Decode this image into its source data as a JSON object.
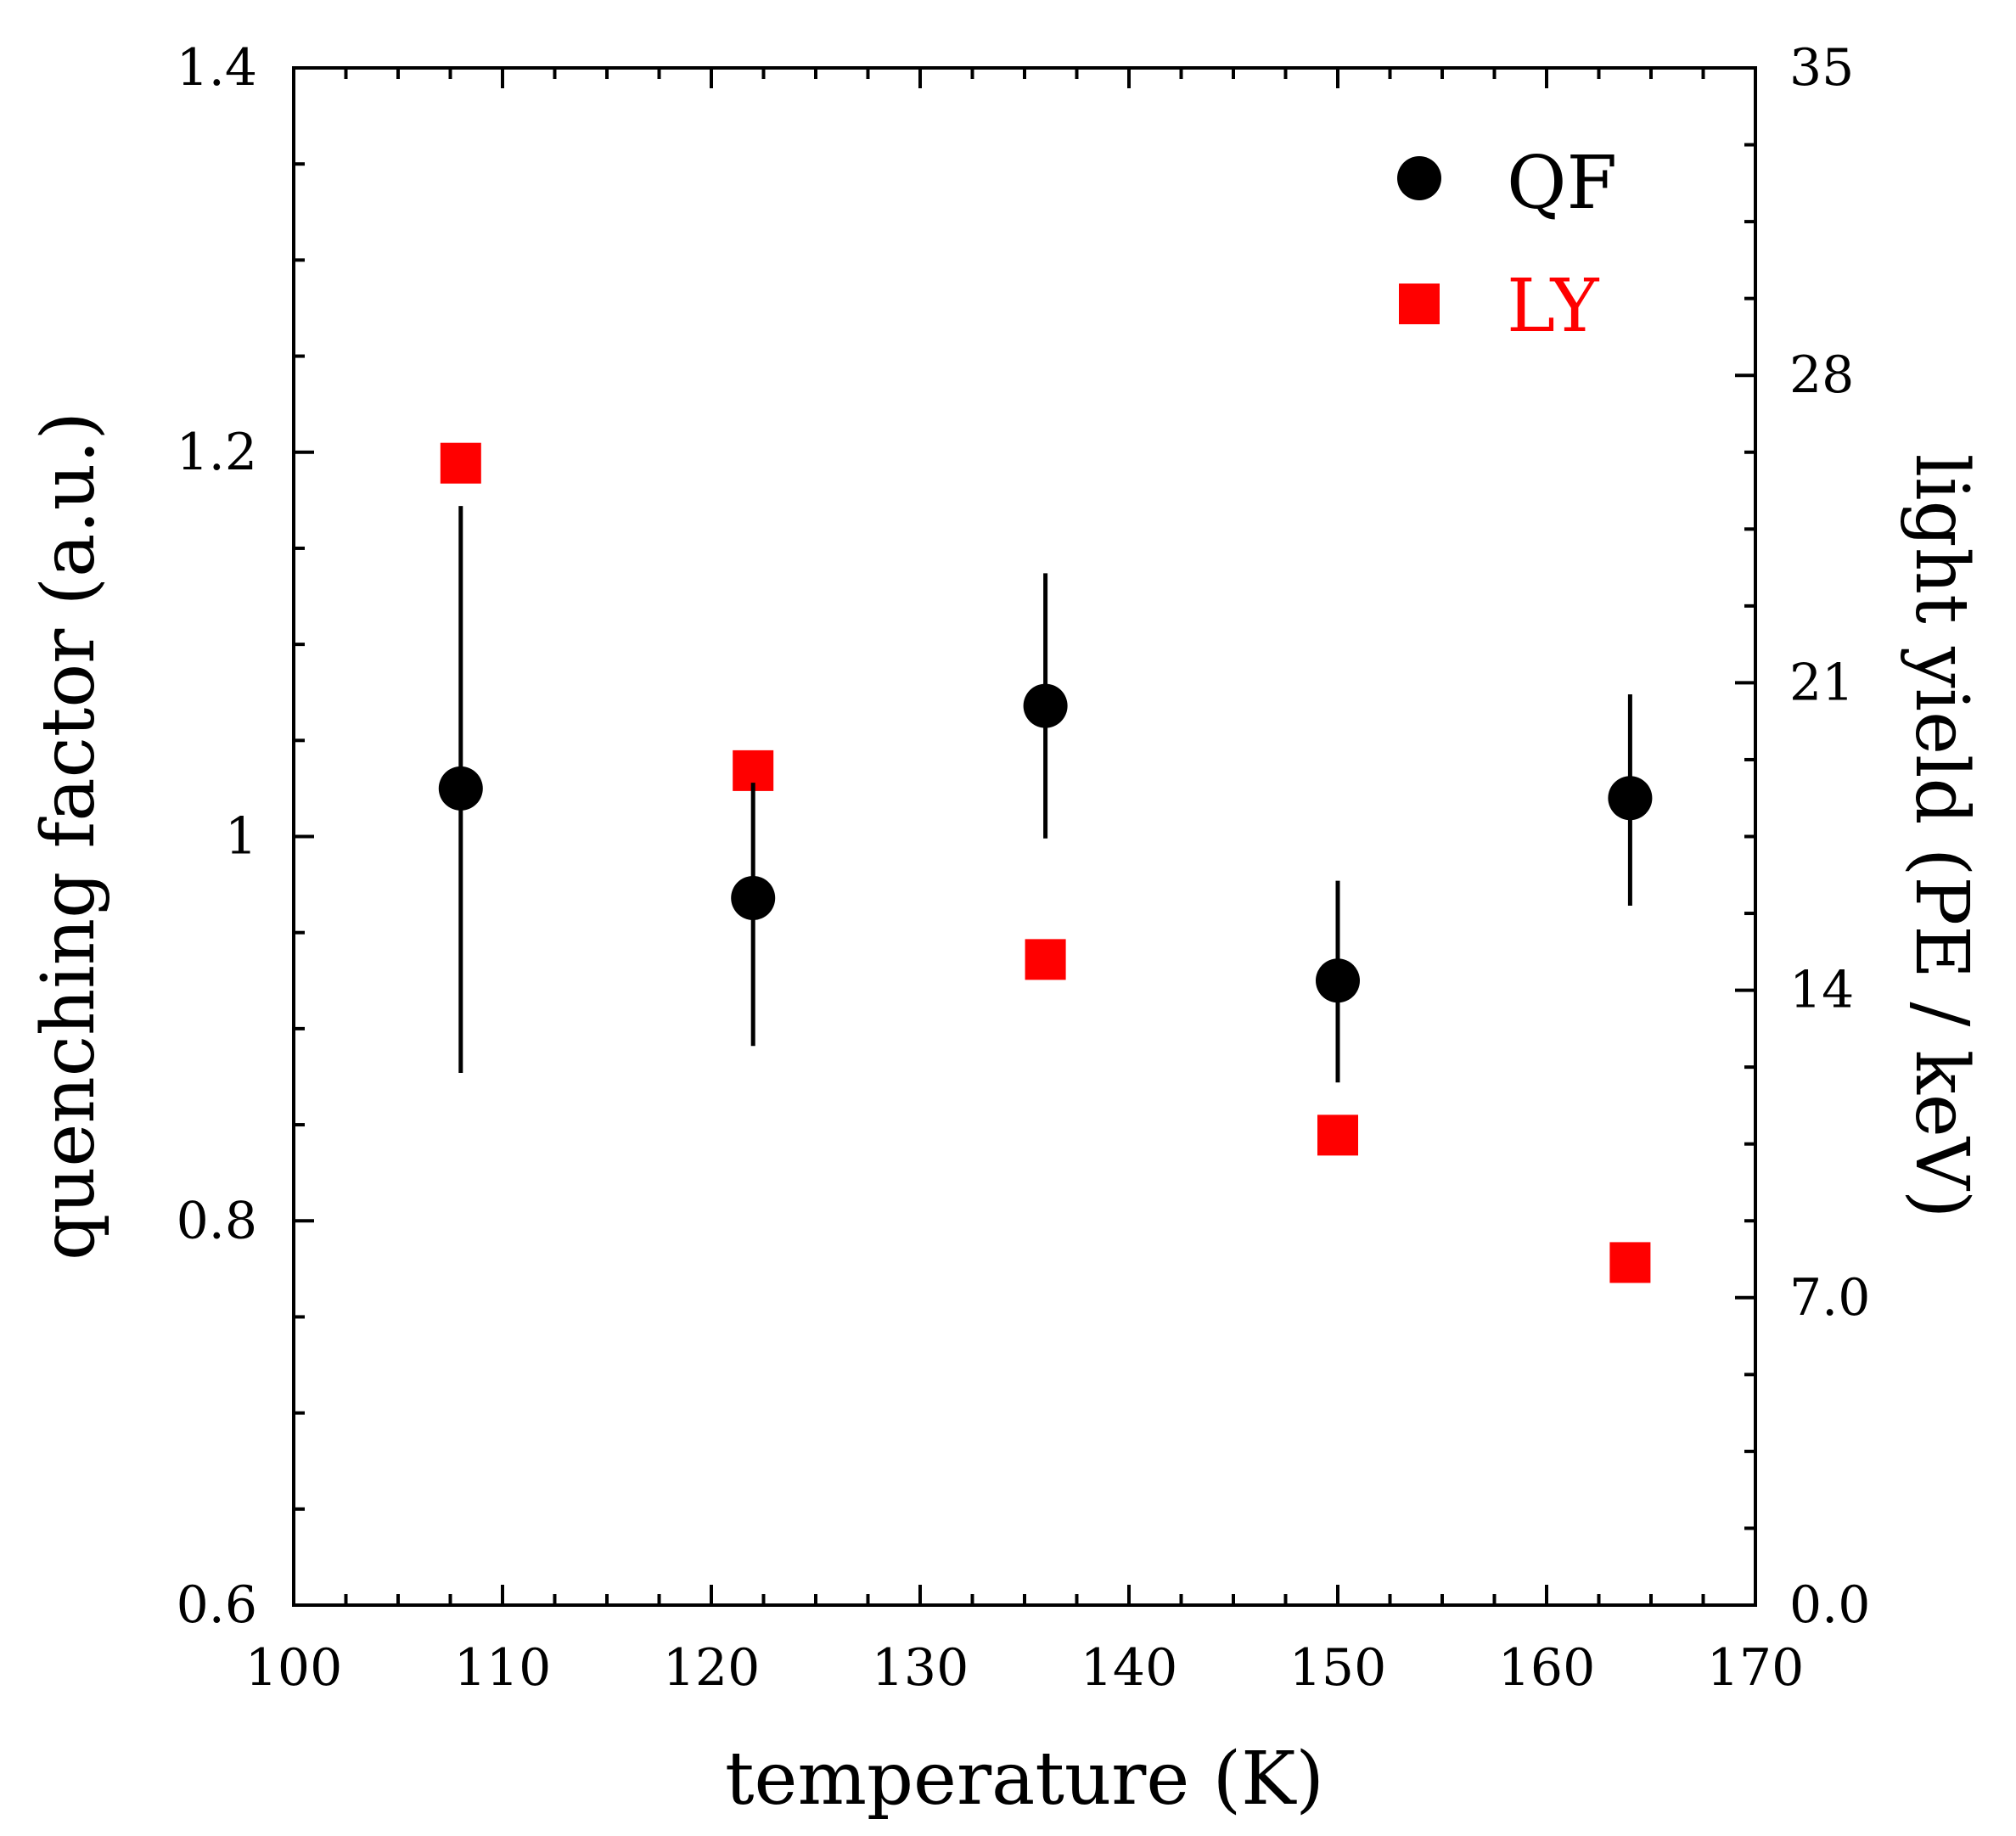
{
  "chart_data": {
    "type": "scatter",
    "xlabel": "temperature (K)",
    "ylabel_left": "quenching factor (a.u.)",
    "ylabel_right": "light yield (PE / keV)",
    "xlim": [
      100,
      170
    ],
    "ylim_left": [
      0.6,
      1.4
    ],
    "ylim_right": [
      0,
      35
    ],
    "x_ticks": [
      100,
      110,
      120,
      130,
      140,
      150,
      160,
      170
    ],
    "x_tick_labels": [
      "100",
      "110",
      "120",
      "130",
      "140",
      "150",
      "160",
      "170"
    ],
    "y_left_ticks": [
      0.6,
      0.8,
      1.0,
      1.2,
      1.4
    ],
    "y_left_tick_labels": [
      "0.6",
      "0.8",
      "1",
      "1.2",
      "1.4"
    ],
    "y_right_ticks": [
      0,
      7,
      14,
      21,
      28,
      35
    ],
    "y_right_tick_labels": [
      "0.0",
      "7.0",
      "14",
      "21",
      "28",
      "35"
    ],
    "legend_position": "top-right",
    "series": [
      {
        "name": "QF",
        "axis": "left",
        "marker": "circle",
        "color": "#000000",
        "x": [
          108,
          122,
          136,
          150,
          164
        ],
        "y": [
          1.025,
          0.968,
          1.068,
          0.925,
          1.02
        ],
        "err_low": [
          0.877,
          0.891,
          0.999,
          0.872,
          0.964
        ],
        "err_high": [
          1.172,
          1.028,
          1.137,
          0.977,
          1.074
        ]
      },
      {
        "name": "LY",
        "axis": "right",
        "marker": "square",
        "color": "#ff0000",
        "x": [
          108,
          122,
          136,
          150,
          164
        ],
        "y": [
          26.0,
          19.0,
          14.7,
          10.7,
          7.8
        ]
      }
    ]
  }
}
